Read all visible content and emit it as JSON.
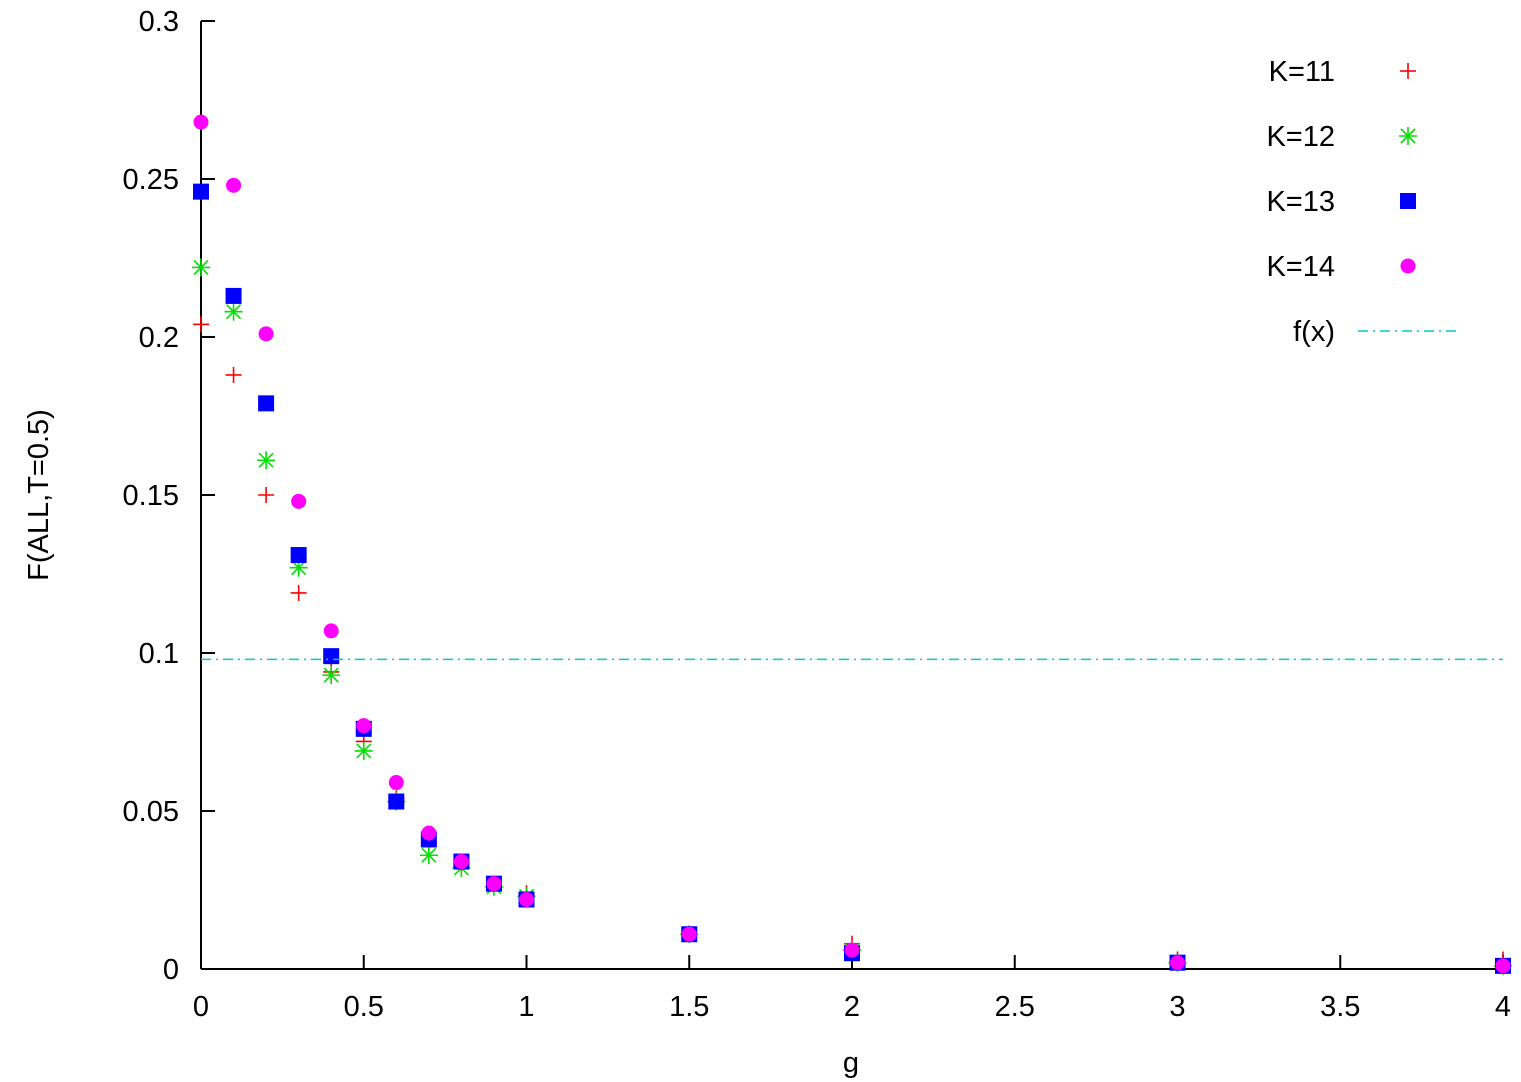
{
  "chart_data": {
    "type": "scatter",
    "title": "",
    "xlabel": "g",
    "ylabel": "F(ALL,T=0.5)",
    "xlim": [
      0,
      4
    ],
    "ylim": [
      0,
      0.3
    ],
    "x_ticks": [
      "0",
      "0.5",
      "1",
      "1.5",
      "2",
      "2.5",
      "3",
      "3.5",
      "4"
    ],
    "y_ticks": [
      "0",
      "0.05",
      "0.1",
      "0.15",
      "0.2",
      "0.25",
      "0.3"
    ],
    "grid": false,
    "legend_position": "top-right",
    "series": [
      {
        "name": "K=11",
        "marker": "plus",
        "color": "#ff0000",
        "points": [
          [
            0,
            0.204
          ],
          [
            0.1,
            0.188
          ],
          [
            0.2,
            0.15
          ],
          [
            0.3,
            0.119
          ],
          [
            0.4,
            0.094
          ],
          [
            0.5,
            0.072
          ],
          [
            0.6,
            0.054
          ],
          [
            0.7,
            0.04
          ],
          [
            0.8,
            0.033
          ],
          [
            0.9,
            0.027
          ],
          [
            1.0,
            0.024
          ],
          [
            1.5,
            0.011
          ],
          [
            2.0,
            0.008
          ],
          [
            3.0,
            0.003
          ],
          [
            4.0,
            0.003
          ]
        ]
      },
      {
        "name": "K=12",
        "marker": "star",
        "color": "#00e000",
        "points": [
          [
            0,
            0.222
          ],
          [
            0.1,
            0.208
          ],
          [
            0.2,
            0.161
          ],
          [
            0.3,
            0.127
          ],
          [
            0.4,
            0.093
          ],
          [
            0.5,
            0.069
          ],
          [
            0.6,
            0.053
          ],
          [
            0.7,
            0.036
          ],
          [
            0.8,
            0.032
          ],
          [
            0.9,
            0.026
          ],
          [
            1.0,
            0.023
          ],
          [
            1.5,
            0.011
          ],
          [
            2.0,
            0.006
          ],
          [
            3.0,
            0.002
          ],
          [
            4.0,
            0.001
          ]
        ]
      },
      {
        "name": "K=13",
        "marker": "square",
        "color": "#0000ff",
        "points": [
          [
            0,
            0.246
          ],
          [
            0.1,
            0.213
          ],
          [
            0.2,
            0.179
          ],
          [
            0.3,
            0.131
          ],
          [
            0.4,
            0.099
          ],
          [
            0.5,
            0.076
          ],
          [
            0.6,
            0.053
          ],
          [
            0.7,
            0.041
          ],
          [
            0.8,
            0.034
          ],
          [
            0.9,
            0.027
          ],
          [
            1.0,
            0.022
          ],
          [
            1.5,
            0.011
          ],
          [
            2.0,
            0.005
          ],
          [
            3.0,
            0.002
          ],
          [
            4.0,
            0.001
          ]
        ]
      },
      {
        "name": "K=14",
        "marker": "circle",
        "color": "#ff00ff",
        "points": [
          [
            0,
            0.268
          ],
          [
            0.1,
            0.248
          ],
          [
            0.2,
            0.201
          ],
          [
            0.3,
            0.148
          ],
          [
            0.4,
            0.107
          ],
          [
            0.5,
            0.077
          ],
          [
            0.6,
            0.059
          ],
          [
            0.7,
            0.043
          ],
          [
            0.8,
            0.034
          ],
          [
            0.9,
            0.027
          ],
          [
            1.0,
            0.022
          ],
          [
            1.5,
            0.011
          ],
          [
            2.0,
            0.006
          ],
          [
            3.0,
            0.002
          ],
          [
            4.0,
            0.001
          ]
        ]
      },
      {
        "name": "f(x)",
        "marker": "dash-dot-line",
        "color": "#00cccc",
        "points": [
          [
            0,
            0.098
          ],
          [
            4.0,
            0.098
          ]
        ]
      }
    ]
  }
}
